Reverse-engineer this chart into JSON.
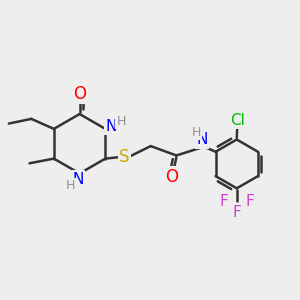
{
  "bg": "#eeeeee",
  "bond_color": "#333333",
  "bond_lw": 1.8,
  "fig_width": 3.0,
  "fig_height": 3.0,
  "dpi": 100,
  "xlim": [
    0.0,
    9.5
  ],
  "ylim": [
    0.5,
    7.5
  ],
  "colors": {
    "O": "#ff0000",
    "N": "#0000ff",
    "H": "#909090",
    "S": "#ccaa00",
    "Cl": "#00bb00",
    "F": "#cc44cc",
    "C": "#333333"
  }
}
